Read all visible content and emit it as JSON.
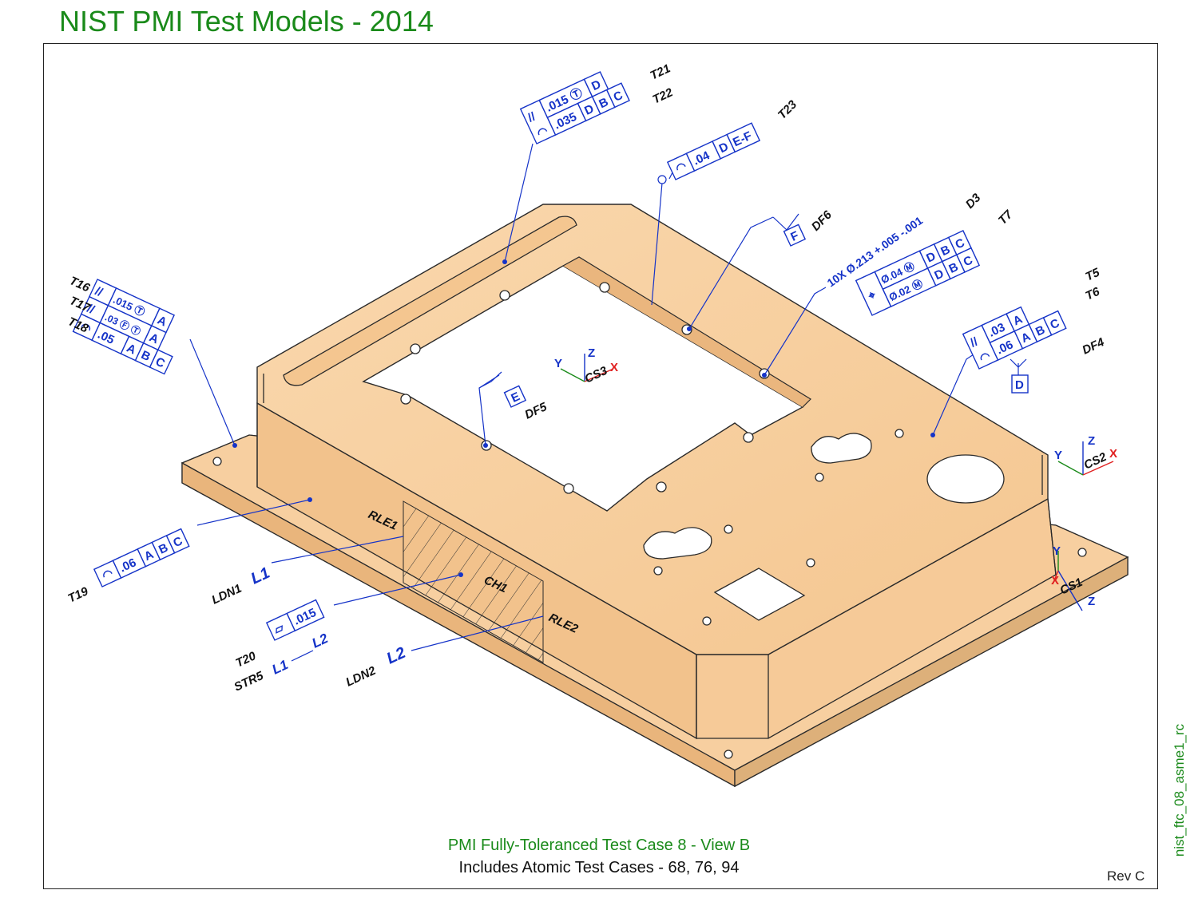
{
  "title": "NIST PMI Test Models - 2014",
  "side_id": "nist_ftc_08_asme1_rc",
  "caption": {
    "line1": "PMI Fully-Toleranced Test Case 8 - View B",
    "line2": "Includes Atomic Test Cases - 68, 76, 94"
  },
  "rev": "Rev C",
  "colors": {
    "part_fill": "#f7cfa0",
    "part_side": "#efbd88",
    "part_dark": "#e4ac70",
    "annotation_blue": "#1533c8",
    "title_green": "#1a8a1a",
    "axis_red": "#e02020",
    "axis_green": "#1a8a1a"
  },
  "labels": {
    "t21": "T21",
    "t22": "T22",
    "t23": "T23",
    "t16": "T16",
    "t17": "T17",
    "t18": "T18",
    "t19": "T19",
    "t20": "T20",
    "t5": "T5",
    "t6": "T6",
    "t7": "T7",
    "d3": "D3",
    "df4": "DF4",
    "df5": "DF5",
    "df6": "DF6",
    "rle1": "RLE1",
    "rle2": "RLE2",
    "ch1": "CH1",
    "ldn1": "LDN1",
    "ldn2": "LDN2",
    "str5": "STR5",
    "cs1": "CS1",
    "cs2": "CS2",
    "cs3": "CS3",
    "l1": "L1",
    "l2": "L2",
    "l1l2_a": "L1",
    "l1l2_b": "L2"
  },
  "fcf": {
    "t21": [
      "//",
      ".015 Ⓣ",
      "D"
    ],
    "t22": [
      "◠",
      ".035",
      "D",
      "B",
      "C"
    ],
    "t23": [
      "◠",
      ".04",
      "D",
      "E-F"
    ],
    "t16": [
      "//",
      ".015 Ⓣ",
      "A"
    ],
    "t17": [
      "//",
      ".03 Ⓕ Ⓣ",
      "A"
    ],
    "t18": [
      "◠",
      ".05",
      "A",
      "B",
      "C"
    ],
    "t19": [
      "◠",
      ".06",
      "A",
      "B",
      "C"
    ],
    "t20": [
      "▱",
      ".015"
    ],
    "t7_dim": "10X Ø.213 +.005 -.001",
    "t7a": [
      "⌖",
      "Ø.04 Ⓜ",
      "D",
      "B",
      "C"
    ],
    "t7b": [
      "Ø.02 Ⓜ",
      "D",
      "B",
      "C"
    ],
    "t5": [
      "//",
      ".03",
      "A"
    ],
    "t6": [
      "◠",
      ".06",
      "A",
      "B",
      "C"
    ]
  },
  "datums": {
    "d": "D",
    "e": "E",
    "f": "F"
  },
  "axes": {
    "x": "X",
    "y": "Y",
    "z": "Z"
  }
}
